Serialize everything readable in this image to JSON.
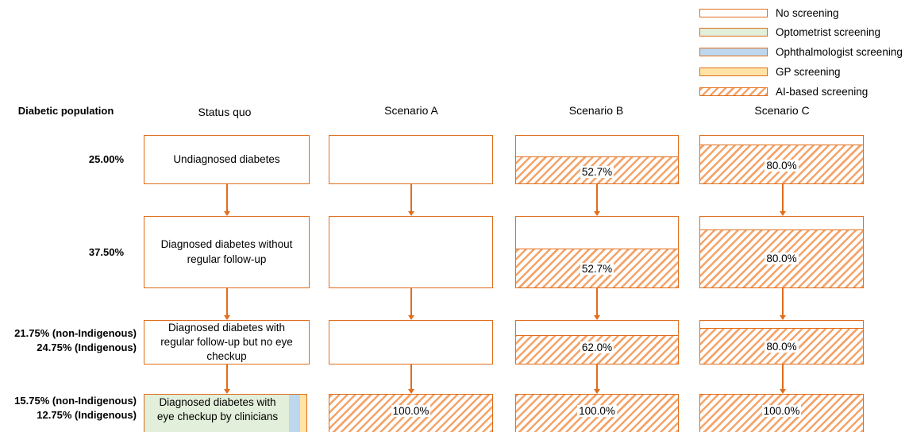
{
  "legend": [
    {
      "key": "none",
      "label": "No screening",
      "color": "#ffffff"
    },
    {
      "key": "optometrist",
      "label": "Optometrist screening",
      "color": "#e2efda"
    },
    {
      "key": "ophthalmologist",
      "label": "Ophthalmologist screening",
      "color": "#bdd7ee"
    },
    {
      "key": "gp",
      "label": "GP screening",
      "color": "#ffe4a6"
    },
    {
      "key": "ai",
      "label": "AI-based screening",
      "color": "#f4a46a"
    }
  ],
  "headers": {
    "population": "Diabetic population",
    "status_quo": "Status quo",
    "scenario_a": "Scenario A",
    "scenario_b": "Scenario B",
    "scenario_c": "Scenario C"
  },
  "rows": [
    {
      "label_1": "25.00%",
      "label_2": "",
      "status_quo_line1": "Undiagnosed diabetes",
      "status_quo_line2": "",
      "status_quo_line3": "",
      "b_pct": "52.7%",
      "b_fraction": 0.527,
      "c_pct": "80.0%",
      "c_fraction": 0.8
    },
    {
      "label_1": "37.50%",
      "label_2": "",
      "status_quo_line1": "Diagnosed diabetes without",
      "status_quo_line2": "regular follow-up",
      "status_quo_line3": "",
      "b_pct": "52.7%",
      "b_fraction": 0.527,
      "c_pct": "80.0%",
      "c_fraction": 0.8
    },
    {
      "label_1": "21.75% (non-Indigenous)",
      "label_2": "24.75% (Indigenous)",
      "status_quo_line1": "Diagnosed diabetes with",
      "status_quo_line2": "regular follow-up but no eye",
      "status_quo_line3": "checkup",
      "b_pct": "62.0%",
      "b_fraction": 0.62,
      "c_pct": "80.0%",
      "c_fraction": 0.8
    },
    {
      "label_1": "15.75% (non-Indigenous)",
      "label_2": "12.75% (Indigenous)",
      "status_quo_line1": "Diagnosed diabetes with",
      "status_quo_line2": "eye checkup by clinicians",
      "status_quo_line3": "",
      "a_pct": "100.0%",
      "b_pct": "100.0%",
      "c_pct": "100.0%"
    }
  ]
}
